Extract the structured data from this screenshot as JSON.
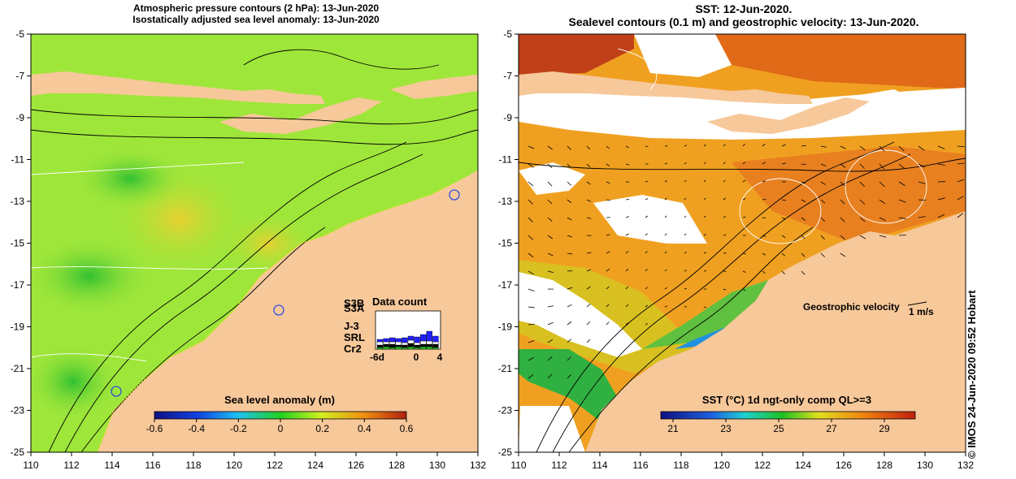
{
  "left_panel": {
    "title_line1": "Atmospheric pressure contours (2 hPa): 13-Jun-2020",
    "title_line2": "Isostatically adjusted sea level anomaly: 13-Jun-2020",
    "colorbar": {
      "label": "Sea level anomaly (m)",
      "ticks": [
        "-0.6",
        "-0.4",
        "-0.2",
        "0",
        "0.2",
        "0.4",
        "0.6"
      ]
    },
    "legend": {
      "title": "Data count",
      "missions": [
        "S3B",
        "S3A",
        "J-3",
        "SRL",
        "Cr2"
      ],
      "mission_colors": [
        "#2020ff",
        "#6060ff",
        "#000000",
        "#40e0ff",
        "#20c020"
      ],
      "x_ticks": [
        "-6d",
        "0",
        "4"
      ]
    }
  },
  "right_panel": {
    "title_line1": "SST: 12-Jun-2020.",
    "title_line2": "Sealevel contours (0.1 m) and geostrophic velocity: 13-Jun-2020.",
    "velocity_label": "Geostrophic velocity",
    "velocity_scale": "1 m/s",
    "colorbar": {
      "label": "SST (°C) 1d ngt-only comp QL>=3",
      "ticks": [
        "21",
        "23",
        "25",
        "27",
        "29"
      ]
    }
  },
  "axes": {
    "x_ticks": [
      "110",
      "112",
      "114",
      "116",
      "118",
      "120",
      "122",
      "124",
      "126",
      "128",
      "130",
      "132"
    ],
    "y_ticks": [
      "-5",
      "-7",
      "-9",
      "-11",
      "-13",
      "-15",
      "-17",
      "-19",
      "-21",
      "-23",
      "-25"
    ]
  },
  "credit": "© IMOS 24-Jun-2020 09:52 Hobart",
  "colors": {
    "land": "#f7c89a",
    "ocean_sla": "#9fe63a",
    "sst_warm": "#f0a020",
    "sst_cool": "#20b040",
    "cloud": "#ffffff"
  }
}
